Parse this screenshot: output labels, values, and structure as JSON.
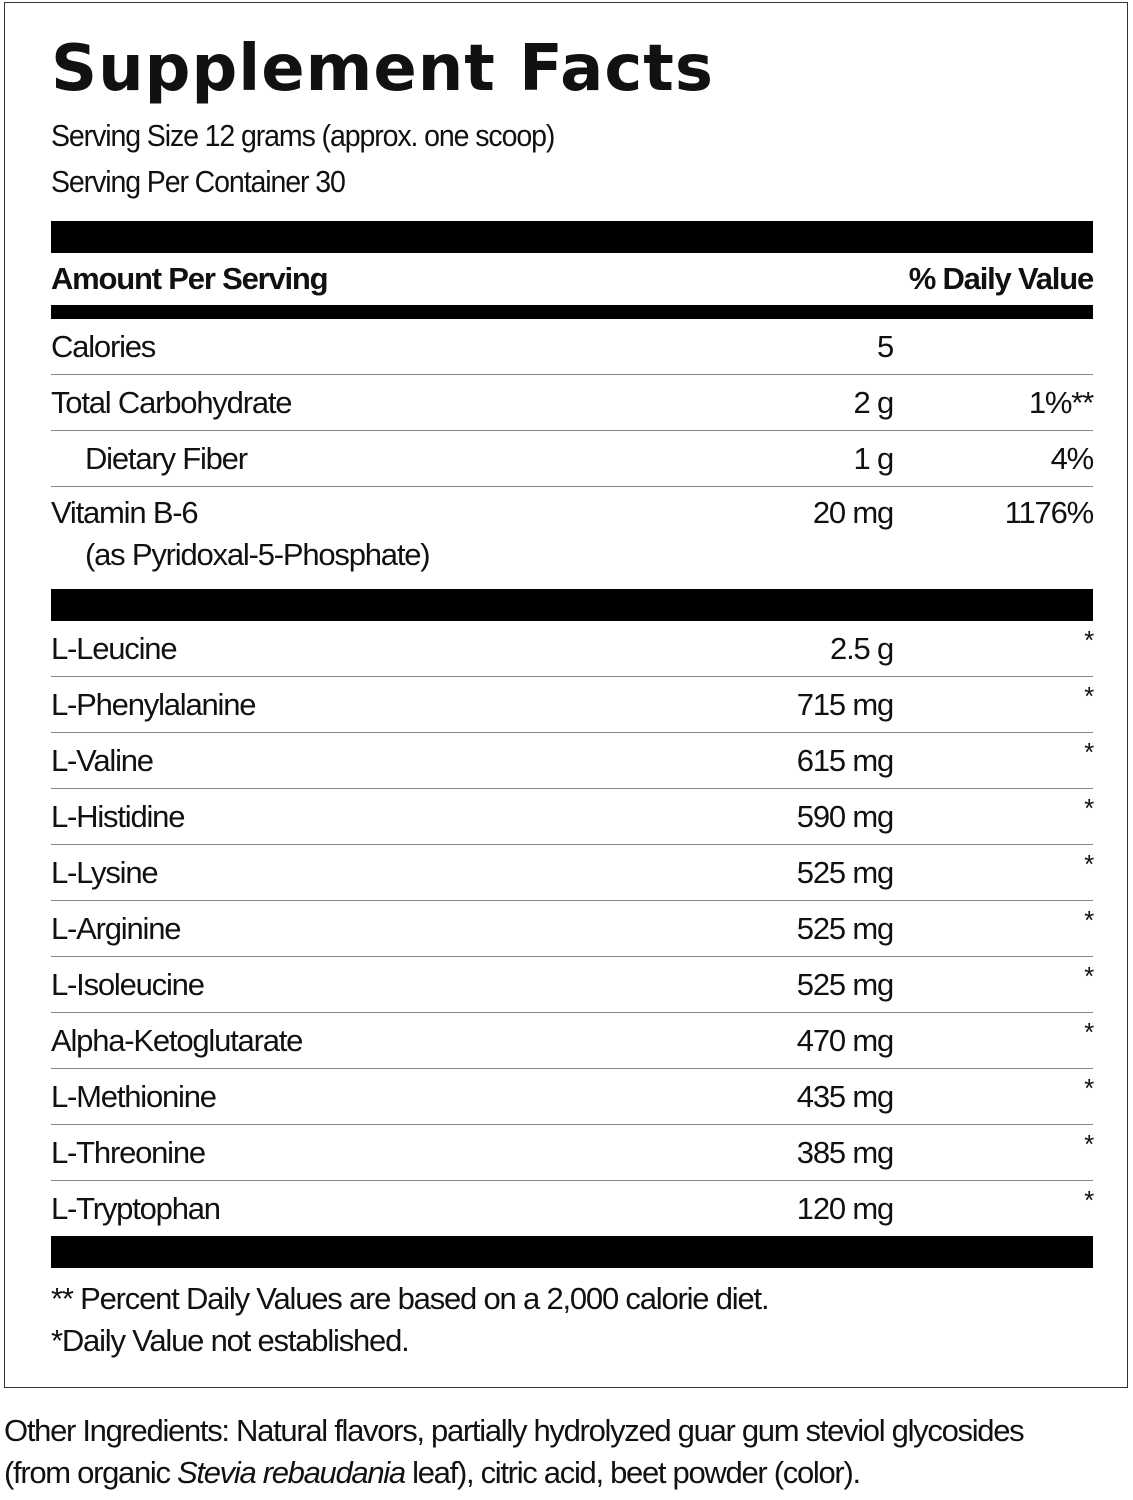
{
  "title": "Supplement Facts",
  "serving_size": "Serving Size 12 grams (approx. one scoop)",
  "servings_per_container": "Serving Per Container 30",
  "header": {
    "amount": "Amount Per Serving",
    "dv": "% Daily Value"
  },
  "nutrients": [
    {
      "name": "Calories",
      "amount": "5",
      "dv": ""
    },
    {
      "name": "Total Carbohydrate",
      "amount": "2 g",
      "dv": "1%**"
    },
    {
      "name": "Dietary Fiber",
      "amount": "1 g",
      "dv": "4%"
    },
    {
      "name": "Vitamin B-6",
      "sub": "(as Pyridoxal-5-Phosphate)",
      "amount": "20 mg",
      "dv": "1176%"
    }
  ],
  "amino_acids": [
    {
      "name": "L-Leucine",
      "amount": "2.5 g",
      "dv": "*"
    },
    {
      "name": "L-Phenylalanine",
      "amount": "715 mg",
      "dv": "*"
    },
    {
      "name": "L-Valine",
      "amount": "615 mg",
      "dv": "*"
    },
    {
      "name": "L-Histidine",
      "amount": "590 mg",
      "dv": "*"
    },
    {
      "name": "L-Lysine",
      "amount": "525 mg",
      "dv": "*"
    },
    {
      "name": "L-Arginine",
      "amount": "525 mg",
      "dv": "*"
    },
    {
      "name": "L-Isoleucine",
      "amount": "525 mg",
      "dv": "*"
    },
    {
      "name": "Alpha-Ketoglutarate",
      "amount": "470 mg",
      "dv": "*"
    },
    {
      "name": "L-Methionine",
      "amount": "435 mg",
      "dv": "*"
    },
    {
      "name": "L-Threonine",
      "amount": "385 mg",
      "dv": "*"
    },
    {
      "name": "L-Tryptophan",
      "amount": "120 mg",
      "dv": "*"
    }
  ],
  "footnotes": [
    "** Percent Daily Values are based on a 2,000 calorie diet.",
    "*Daily Value not established."
  ],
  "other_ingredients": {
    "line1": "Other Ingredients: Natural flavors, partially hydrolyzed guar gum steviol glycosides",
    "line2_pre": "(from organic ",
    "line2_italic": "Stevia rebaudania",
    "line2_post": " leaf), citric acid, beet powder (color)."
  }
}
